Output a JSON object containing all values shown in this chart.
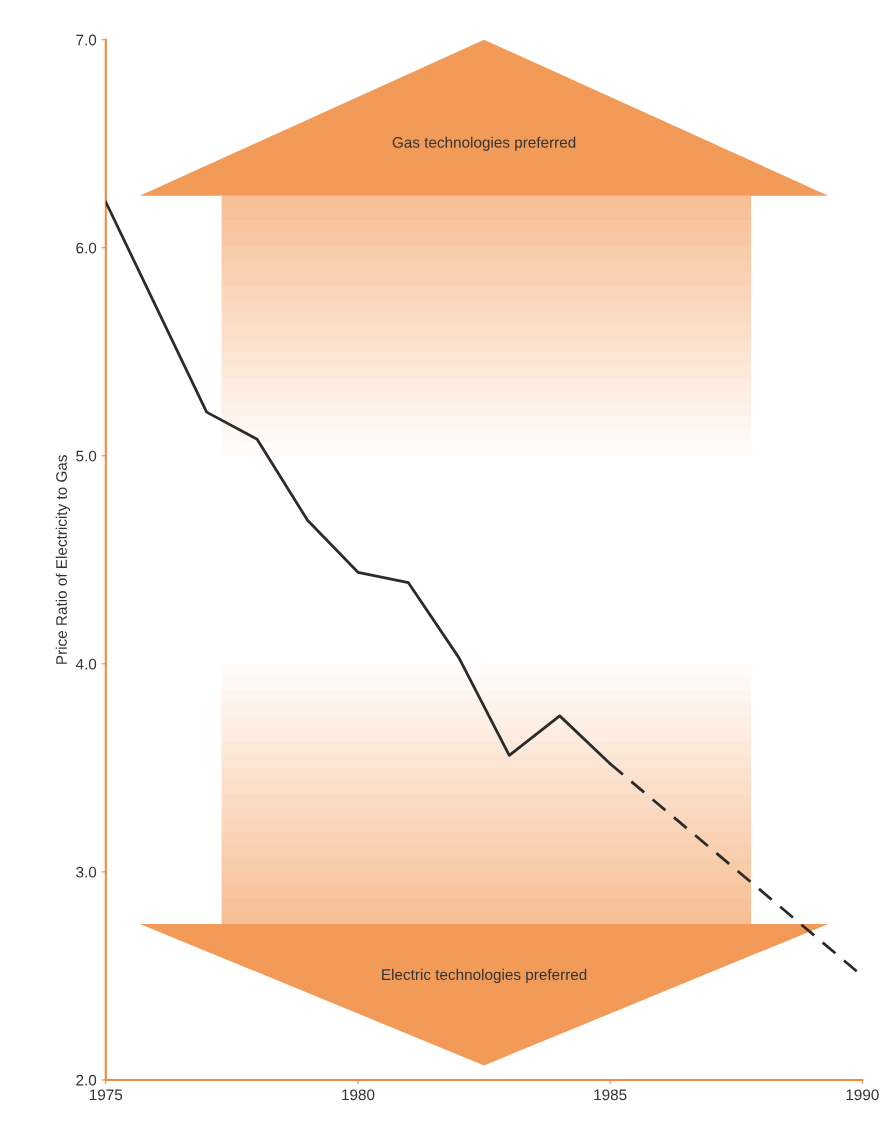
{
  "chart_data": {
    "type": "line",
    "ylabel": "Price Ratio of Electricity to Gas",
    "series": [
      {
        "color": "#2b2b2b",
        "line_style": "solid",
        "x": [
          1975,
          1977,
          1978,
          1979,
          1980,
          1981,
          1982,
          1983,
          1984,
          1985
        ],
        "values": [
          6.22,
          5.21,
          5.08,
          4.69,
          4.44,
          4.39,
          4.03,
          3.56,
          3.75,
          3.52
        ]
      },
      {
        "color": "#2b2b2b",
        "line_style": "dashed",
        "x": [
          1985,
          1990
        ],
        "values": [
          3.52,
          2.5
        ]
      }
    ],
    "xlim": [
      1975,
      1990
    ],
    "xticks": [
      1975,
      1980,
      1985,
      1990
    ],
    "ylim": [
      2.0,
      7.0
    ],
    "yticks": [
      {
        "value": 2,
        "label": "2.0"
      },
      {
        "value": 3,
        "label": "3.0"
      },
      {
        "value": 4,
        "label": "4.0"
      },
      {
        "value": 5,
        "label": "5.0"
      },
      {
        "value": 6,
        "label": "6.0"
      },
      {
        "value": 7,
        "label": "7.0"
      }
    ],
    "grid": false,
    "legend": false,
    "marker": "none",
    "annotations": [
      "Gas technologies preferred",
      "Electric technologies preferred"
    ]
  }
}
